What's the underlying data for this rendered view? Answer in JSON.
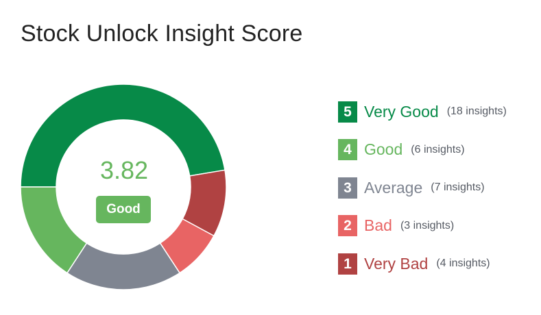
{
  "title": "Stock Unlock Insight Score",
  "center": {
    "score": "3.82",
    "badge": "Good",
    "badge_color": "#66b65e"
  },
  "legend": [
    {
      "number": "5",
      "label": "Very Good",
      "count": "(18 insights)",
      "color": "#078a48",
      "label_color": "#078a48"
    },
    {
      "number": "4",
      "label": "Good",
      "count": "(6 insights)",
      "color": "#66b65e",
      "label_color": "#66b65e"
    },
    {
      "number": "3",
      "label": "Average",
      "count": "(7 insights)",
      "color": "#7f8591",
      "label_color": "#7f8591"
    },
    {
      "number": "2",
      "label": "Bad",
      "count": "(3 insights)",
      "color": "#e86464",
      "label_color": "#e86464"
    },
    {
      "number": "1",
      "label": "Very Bad",
      "count": "(4 insights)",
      "color": "#b04242",
      "label_color": "#b04242"
    }
  ],
  "chart_data": {
    "type": "pie",
    "variant": "donut",
    "categories": [
      "Very Good",
      "Very Bad",
      "Bad",
      "Average",
      "Good"
    ],
    "values": [
      18,
      4,
      3,
      7,
      6
    ],
    "colors": [
      "#078a48",
      "#b04242",
      "#e86464",
      "#7f8591",
      "#66b65e"
    ],
    "start": "left, clockwise",
    "legend_position": "right"
  }
}
